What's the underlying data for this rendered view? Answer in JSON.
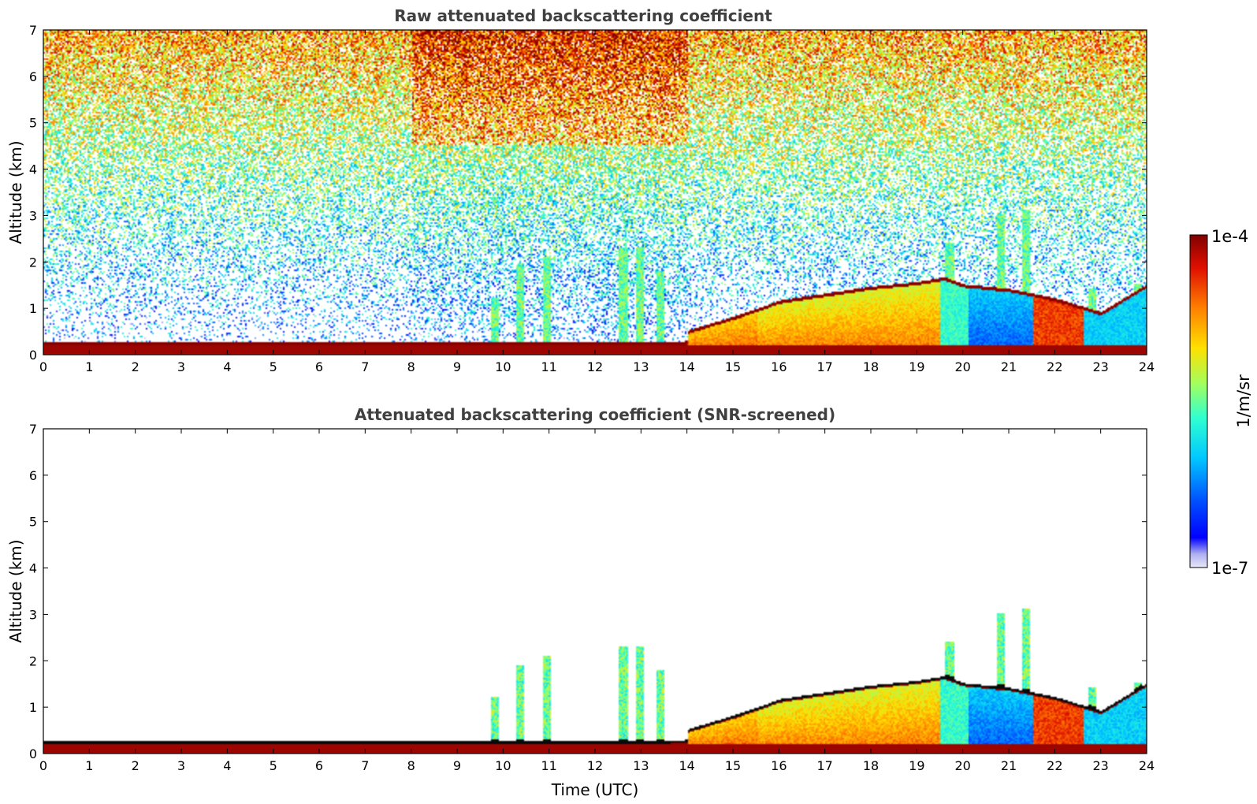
{
  "chart_data": [
    {
      "type": "heatmap",
      "title": "Raw attenuated backscattering coefficient",
      "xlabel": "",
      "ylabel": "Altitude (km)",
      "xlim": [
        0,
        24
      ],
      "ylim": [
        0,
        7
      ],
      "x_ticks": [
        "0",
        "1",
        "2",
        "3",
        "4",
        "5",
        "6",
        "7",
        "8",
        "9",
        "10",
        "11",
        "12",
        "13",
        "14",
        "15",
        "16",
        "17",
        "18",
        "19",
        "20",
        "21",
        "22",
        "23",
        "24"
      ],
      "y_ticks": [
        "0",
        "1",
        "2",
        "3",
        "4",
        "5",
        "6",
        "7"
      ],
      "screened": false,
      "boundary_layer_top_km": {
        "hours": [
          0,
          3,
          6,
          9,
          11,
          12,
          13,
          14,
          15,
          15.6,
          16,
          17,
          18,
          19,
          19.6,
          20,
          21,
          22,
          23,
          24
        ],
        "values": [
          0.3,
          0.3,
          0.3,
          0.3,
          0.3,
          0.3,
          0.4,
          0.5,
          0.8,
          1.0,
          1.15,
          1.3,
          1.45,
          1.55,
          1.65,
          1.5,
          1.4,
          1.2,
          0.9,
          1.5
        ]
      }
    },
    {
      "type": "heatmap",
      "title": "Attenuated backscattering coefficient (SNR-screened)",
      "xlabel": "Time (UTC)",
      "ylabel": "Altitude (km)",
      "xlim": [
        0,
        24
      ],
      "ylim": [
        0,
        7
      ],
      "x_ticks": [
        "0",
        "1",
        "2",
        "3",
        "4",
        "5",
        "6",
        "7",
        "8",
        "9",
        "10",
        "11",
        "12",
        "13",
        "14",
        "15",
        "16",
        "17",
        "18",
        "19",
        "20",
        "21",
        "22",
        "23",
        "24"
      ],
      "y_ticks": [
        "0",
        "1",
        "2",
        "3",
        "4",
        "5",
        "6",
        "7"
      ],
      "screened": true
    }
  ],
  "colorbar": {
    "label": "1/m/sr",
    "max_label": "1e-4",
    "min_label": "1e-7",
    "scale": "log",
    "range": [
      1e-07,
      0.0001
    ]
  },
  "colors": {
    "axis": "#000000",
    "title": "#404040",
    "background": "#ffffff"
  }
}
